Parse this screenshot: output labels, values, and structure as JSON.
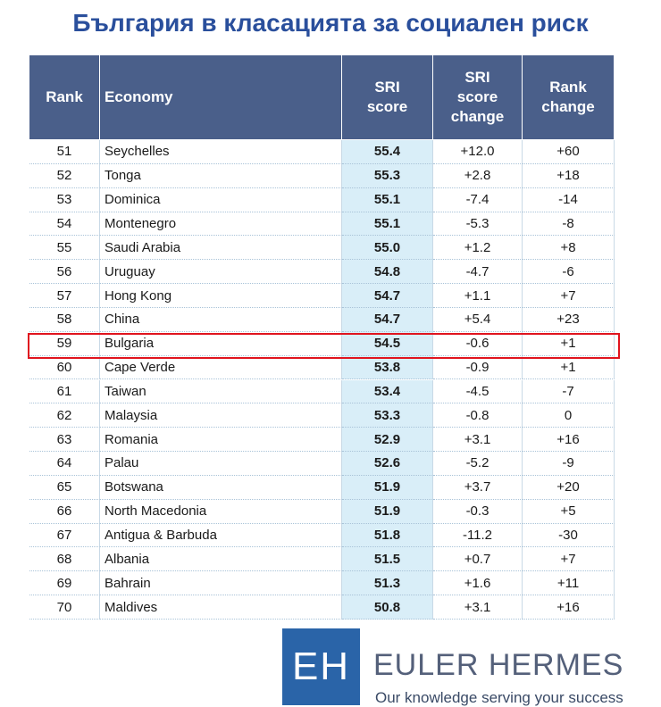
{
  "title": "България в класацията за социален риск",
  "table": {
    "header": [
      "Rank",
      "Economy",
      "SRI score",
      "SRI score change",
      "Rank change"
    ],
    "rows": [
      [
        "51",
        "Seychelles",
        "55.4",
        "+12.0",
        "+60"
      ],
      [
        "52",
        "Tonga",
        "55.3",
        "+2.8",
        "+18"
      ],
      [
        "53",
        "Dominica",
        "55.1",
        "-7.4",
        "-14"
      ],
      [
        "54",
        "Montenegro",
        "55.1",
        "-5.3",
        "-8"
      ],
      [
        "55",
        "Saudi Arabia",
        "55.0",
        "+1.2",
        "+8"
      ],
      [
        "56",
        "Uruguay",
        "54.8",
        "-4.7",
        "-6"
      ],
      [
        "57",
        "Hong Kong",
        "54.7",
        "+1.1",
        "+7"
      ],
      [
        "58",
        "China",
        "54.7",
        "+5.4",
        "+23"
      ],
      [
        "59",
        "Bulgaria",
        "54.5",
        "-0.6",
        "+1"
      ],
      [
        "60",
        "Cape Verde",
        "53.8",
        "-0.9",
        "+1"
      ],
      [
        "61",
        "Taiwan",
        "53.4",
        "-4.5",
        "-7"
      ],
      [
        "62",
        "Malaysia",
        "53.3",
        "-0.8",
        "0"
      ],
      [
        "63",
        "Romania",
        "52.9",
        "+3.1",
        "+16"
      ],
      [
        "64",
        "Palau",
        "52.6",
        "-5.2",
        "-9"
      ],
      [
        "65",
        "Botswana",
        "51.9",
        "+3.7",
        "+20"
      ],
      [
        "66",
        "North Macedonia",
        "51.9",
        "-0.3",
        "+5"
      ],
      [
        "67",
        "Antigua & Barbuda",
        "51.8",
        "-11.2",
        "-30"
      ],
      [
        "68",
        "Albania",
        "51.5",
        "+0.7",
        "+7"
      ],
      [
        "69",
        "Bahrain",
        "51.3",
        "+1.6",
        "+11"
      ],
      [
        "70",
        "Maldives",
        "50.8",
        "+3.1",
        "+16"
      ]
    ]
  },
  "logo": {
    "mark": "EH",
    "name": "EULER HERMES",
    "tagline": "Our knowledge serving your success"
  }
}
